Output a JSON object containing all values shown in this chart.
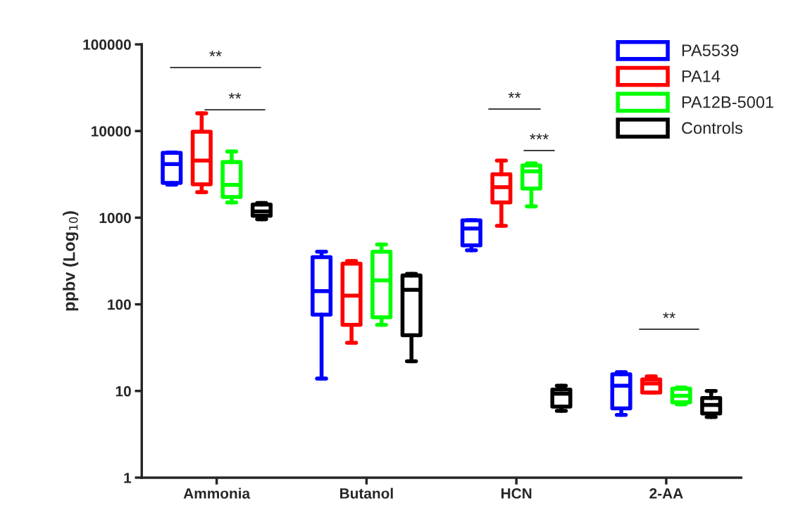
{
  "chart_data": {
    "type": "box",
    "ylabel": "ppbv (Log$_{10}$)",
    "categories": [
      "Ammonia",
      "Butanol",
      "HCN",
      "2-AA"
    ],
    "log": true,
    "ylim": [
      1,
      100000
    ],
    "yticks": [
      1,
      10,
      100,
      1000,
      10000,
      100000
    ],
    "legend": "top right",
    "grid": false,
    "series": [
      {
        "name": "PA5539",
        "color": "#0000ff",
        "boxes": [
          {
            "low": 2400,
            "q1": 2520,
            "median": 4150,
            "q3": 5600,
            "high": 5650
          },
          {
            "low": 13.9,
            "q1": 76,
            "median": 142,
            "q3": 350,
            "high": 405
          },
          {
            "low": 420,
            "q1": 480,
            "median": 750,
            "q3": 930,
            "high": 935
          },
          {
            "low": 5.3,
            "q1": 6.3,
            "median": 11.5,
            "q3": 15.6,
            "high": 16.5
          }
        ]
      },
      {
        "name": "PA14",
        "color": "#ff0000",
        "boxes": [
          {
            "low": 1970,
            "q1": 2430,
            "median": 4560,
            "q3": 9800,
            "high": 16000
          },
          {
            "low": 36,
            "q1": 58,
            "median": 126,
            "q3": 295,
            "high": 316
          },
          {
            "low": 805,
            "q1": 1500,
            "median": 2250,
            "q3": 3170,
            "high": 4560
          },
          {
            "low": 9.6,
            "q1": 9.6,
            "median": 12.2,
            "q3": 13.6,
            "high": 14.7
          }
        ]
      },
      {
        "name": "PA12B-5001",
        "color": "#00ff00",
        "boxes": [
          {
            "low": 1500,
            "q1": 1730,
            "median": 2390,
            "q3": 4380,
            "high": 5800
          },
          {
            "low": 58,
            "q1": 71,
            "median": 189,
            "q3": 405,
            "high": 490
          },
          {
            "low": 1350,
            "q1": 2170,
            "median": 3430,
            "q3": 4000,
            "high": 4230
          },
          {
            "low": 7.0,
            "q1": 7.4,
            "median": 8.8,
            "q3": 10.6,
            "high": 11
          }
        ]
      },
      {
        "name": "Controls",
        "color": "#000000",
        "boxes": [
          {
            "low": 960,
            "q1": 1050,
            "median": 1180,
            "q3": 1420,
            "high": 1480
          },
          {
            "low": 22,
            "q1": 44,
            "median": 147,
            "q3": 215,
            "high": 225
          },
          {
            "low": 5.9,
            "q1": 6.6,
            "median": 9.3,
            "q3": 10.4,
            "high": 11.5
          },
          {
            "low": 5.0,
            "q1": 5.5,
            "median": 6.9,
            "q3": 8.3,
            "high": 10
          }
        ]
      }
    ],
    "annotations": [
      "**",
      "**",
      "**",
      "***",
      "**"
    ]
  }
}
